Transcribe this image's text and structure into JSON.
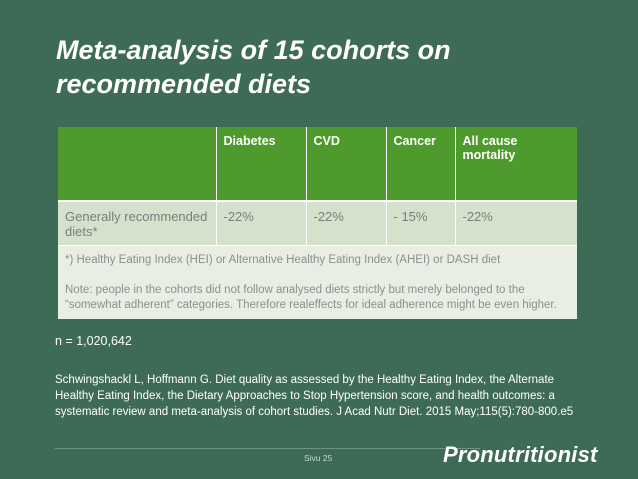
{
  "slide": {
    "title": "Meta-analysis of 15 cohorts on recommended diets"
  },
  "table": {
    "headers": [
      "",
      "Diabetes",
      "CVD",
      "Cancer",
      "All cause mortality"
    ],
    "row": {
      "label": "Generally recommended diets*",
      "values": [
        "-22%",
        "-22%",
        "- 15%",
        "-22%"
      ]
    },
    "footnote": "*) Healthy Eating Index (HEI) or Alternative Healthy Eating Index (AHEI) or  DASH diet",
    "note": "Note: people in the cohorts did not follow analysed diets strictly but merely belonged to the “somewhat adherent” categories. Therefore realeffects for ideal adherence might be even higher."
  },
  "sample_size": "n = 1,020,642",
  "citation": "Schwingshackl L, Hoffmann G. Diet quality as assessed by the Healthy Eating Index, the Alternate Healthy Eating Index, the Dietary Approaches to Stop Hypertension score, and health outcomes: a systematic review and meta-analysis of cohort studies. J Acad Nutr Diet. 2015 May;115(5):780-800.e5",
  "footer": {
    "page_label": "Sivu 25",
    "logo_text": "Pronutritionist"
  },
  "colors": {
    "background": "#3e6b55",
    "header_green": "#4f9a2c",
    "row_light": "#d4e2cc"
  }
}
